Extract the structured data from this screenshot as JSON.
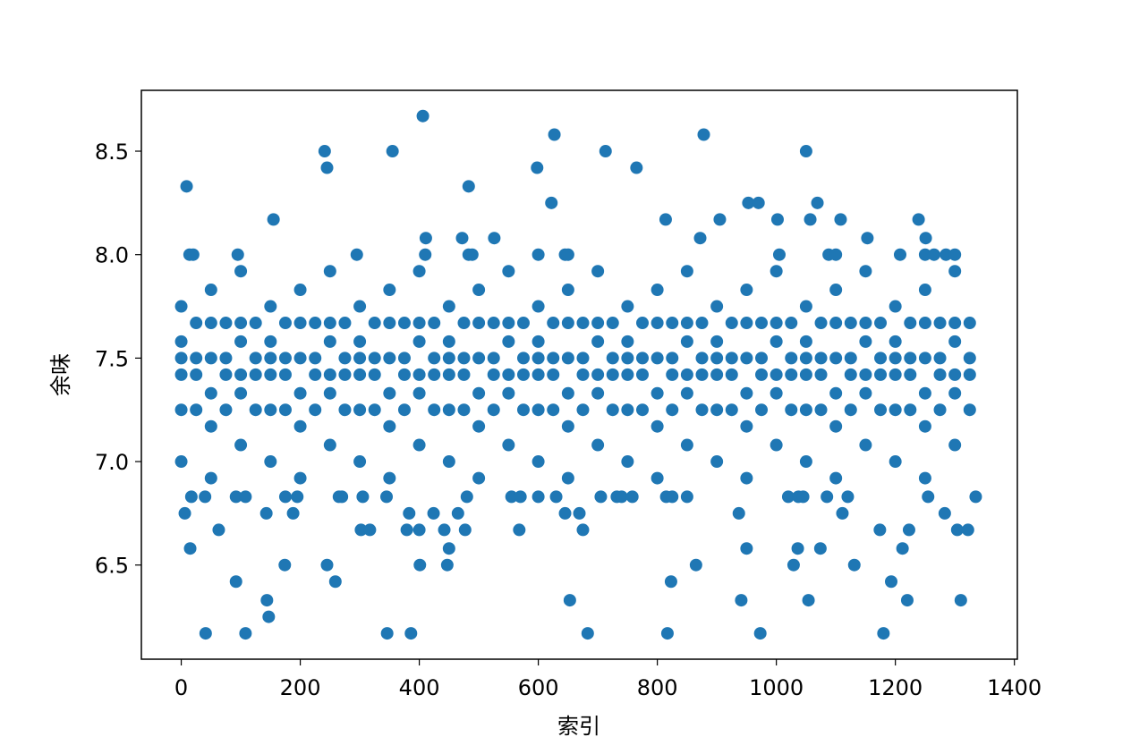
{
  "chart_data": {
    "type": "scatter",
    "x_label": "索引",
    "y_label": "余味",
    "color": "#1f77b4",
    "xlim": [
      -67,
      1405
    ],
    "ylim": [
      6.045,
      8.794
    ],
    "xticks": [
      0,
      200,
      400,
      600,
      800,
      1000,
      1200,
      1400
    ],
    "yticks": [
      6.5,
      {
        "value": 7.0,
        "label": "7.0"
      },
      7.5,
      {
        "value": 8.0,
        "label": "8.0"
      },
      8.5
    ],
    "x": [
      0,
      0,
      0,
      0,
      0,
      0,
      50,
      50,
      50,
      50,
      50,
      50,
      100,
      100,
      100,
      100,
      100,
      100,
      150,
      150,
      150,
      150,
      150,
      150,
      200,
      200,
      200,
      200,
      200,
      200,
      250,
      250,
      250,
      250,
      250,
      250,
      300,
      300,
      300,
      300,
      300,
      300,
      350,
      350,
      350,
      350,
      350,
      350,
      400,
      400,
      400,
      400,
      400,
      400,
      450,
      450,
      450,
      450,
      450,
      450,
      500,
      500,
      500,
      500,
      500,
      500,
      550,
      550,
      550,
      550,
      550,
      550,
      600,
      600,
      600,
      600,
      600,
      600,
      650,
      650,
      650,
      650,
      650,
      650,
      700,
      700,
      700,
      700,
      700,
      700,
      750,
      750,
      750,
      750,
      750,
      750,
      800,
      800,
      800,
      800,
      800,
      800,
      850,
      850,
      850,
      850,
      850,
      850,
      900,
      900,
      900,
      900,
      900,
      900,
      950,
      950,
      950,
      950,
      950,
      950,
      1000,
      1000,
      1000,
      1000,
      1000,
      1000,
      1050,
      1050,
      1050,
      1050,
      1050,
      1050,
      1100,
      1100,
      1100,
      1100,
      1100,
      1100,
      1150,
      1150,
      1150,
      1150,
      1150,
      1150,
      1200,
      1200,
      1200,
      1200,
      1200,
      1200,
      1250,
      1250,
      1250,
      1250,
      1250,
      1250,
      1300,
      1300,
      1300,
      1300,
      1300,
      1300,
      25,
      25,
      25,
      25,
      75,
      75,
      75,
      75,
      125,
      125,
      125,
      125,
      175,
      175,
      175,
      175,
      225,
      225,
      225,
      225,
      275,
      275,
      275,
      275,
      325,
      325,
      325,
      325,
      375,
      375,
      375,
      375,
      425,
      425,
      425,
      425,
      475,
      475,
      475,
      475,
      525,
      525,
      525,
      525,
      575,
      575,
      575,
      575,
      625,
      625,
      625,
      625,
      675,
      675,
      675,
      675,
      725,
      725,
      725,
      725,
      775,
      775,
      775,
      775,
      825,
      825,
      825,
      825,
      875,
      875,
      875,
      875,
      925,
      925,
      925,
      925,
      975,
      975,
      975,
      975,
      1025,
      1025,
      1025,
      1025,
      1075,
      1075,
      1075,
      1075,
      1125,
      1125,
      1125,
      1125,
      1175,
      1175,
      1175,
      1175,
      1225,
      1225,
      1225,
      1225,
      1275,
      1275,
      1275,
      1275,
      1325,
      1325,
      1325,
      1325,
      9,
      406,
      241,
      245,
      355,
      627,
      598,
      622,
      713,
      765,
      878,
      1050,
      483,
      155,
      953,
      970,
      1069,
      41,
      108,
      346,
      386,
      683,
      817,
      973,
      1180,
      144,
      147,
      653,
      941,
      1054,
      1220,
      1310,
      92,
      259,
      823,
      1193,
      15,
      450,
      950,
      1036,
      1074,
      1212,
      174,
      245,
      401,
      447,
      865,
      1029,
      1131,
      63,
      302,
      317,
      379,
      400,
      442,
      477,
      568,
      675,
      1174,
      1223,
      1304,
      1322,
      6,
      143,
      188,
      383,
      424,
      465,
      645,
      669,
      937,
      1111,
      1283,
      814,
      1239,
      1108,
      1002,
      905,
      1057,
      411,
      472,
      526,
      872,
      1153,
      1251,
      14,
      20,
      95,
      295,
      410,
      483,
      489,
      600,
      645,
      650,
      1005,
      1088,
      1100,
      1208,
      1250,
      1265,
      1285,
      1300,
      17,
      40,
      92,
      108,
      175,
      195,
      265,
      270,
      305,
      345,
      480,
      555,
      570,
      600,
      630,
      705,
      732,
      740,
      758,
      815,
      825,
      850,
      1020,
      1037,
      1045,
      1085,
      1120,
      1255,
      1335
    ],
    "values": [
      7.0,
      7.25,
      7.42,
      7.5,
      7.58,
      7.75,
      6.92,
      7.17,
      7.33,
      7.5,
      7.67,
      7.83,
      7.08,
      7.33,
      7.42,
      7.58,
      7.67,
      7.92,
      7.0,
      7.25,
      7.42,
      7.5,
      7.58,
      7.75,
      6.92,
      7.17,
      7.33,
      7.5,
      7.67,
      7.83,
      7.08,
      7.33,
      7.42,
      7.58,
      7.67,
      7.92,
      7.0,
      7.25,
      7.42,
      7.5,
      7.58,
      7.75,
      6.92,
      7.17,
      7.33,
      7.5,
      7.67,
      7.83,
      7.08,
      7.33,
      7.42,
      7.58,
      7.67,
      7.92,
      7.0,
      7.25,
      7.42,
      7.5,
      7.58,
      7.75,
      6.92,
      7.17,
      7.33,
      7.5,
      7.67,
      7.83,
      7.08,
      7.33,
      7.42,
      7.58,
      7.67,
      7.92,
      7.0,
      7.25,
      7.42,
      7.5,
      7.58,
      7.75,
      6.92,
      7.17,
      7.33,
      7.5,
      7.67,
      7.83,
      7.08,
      7.33,
      7.42,
      7.58,
      7.67,
      7.92,
      7.0,
      7.25,
      7.42,
      7.5,
      7.58,
      7.75,
      6.92,
      7.17,
      7.33,
      7.5,
      7.67,
      7.83,
      7.08,
      7.33,
      7.42,
      7.58,
      7.67,
      7.92,
      7.0,
      7.25,
      7.42,
      7.5,
      7.58,
      7.75,
      6.92,
      7.17,
      7.33,
      7.5,
      7.67,
      7.83,
      7.08,
      7.33,
      7.42,
      7.58,
      7.67,
      7.92,
      7.0,
      7.25,
      7.42,
      7.5,
      7.58,
      7.75,
      6.92,
      7.17,
      7.33,
      7.5,
      7.67,
      7.83,
      7.08,
      7.33,
      7.42,
      7.58,
      7.67,
      7.92,
      7.0,
      7.25,
      7.42,
      7.5,
      7.58,
      7.75,
      6.92,
      7.17,
      7.33,
      7.5,
      7.67,
      7.83,
      7.08,
      7.33,
      7.42,
      7.58,
      7.67,
      7.92,
      7.25,
      7.42,
      7.5,
      7.67,
      7.25,
      7.42,
      7.5,
      7.67,
      7.25,
      7.42,
      7.5,
      7.67,
      7.25,
      7.42,
      7.5,
      7.67,
      7.25,
      7.42,
      7.5,
      7.67,
      7.25,
      7.42,
      7.5,
      7.67,
      7.25,
      7.42,
      7.5,
      7.67,
      7.25,
      7.42,
      7.5,
      7.67,
      7.25,
      7.42,
      7.5,
      7.67,
      7.25,
      7.42,
      7.5,
      7.67,
      7.25,
      7.42,
      7.5,
      7.67,
      7.25,
      7.42,
      7.5,
      7.67,
      7.25,
      7.42,
      7.5,
      7.67,
      7.25,
      7.42,
      7.5,
      7.67,
      7.25,
      7.42,
      7.5,
      7.67,
      7.25,
      7.42,
      7.5,
      7.67,
      7.25,
      7.42,
      7.5,
      7.67,
      7.25,
      7.42,
      7.5,
      7.67,
      7.25,
      7.42,
      7.5,
      7.67,
      7.25,
      7.42,
      7.5,
      7.67,
      7.25,
      7.42,
      7.5,
      7.67,
      7.25,
      7.42,
      7.5,
      7.67,
      7.25,
      7.42,
      7.5,
      7.67,
      7.25,
      7.42,
      7.5,
      7.67,
      7.25,
      7.42,
      7.5,
      7.67,
      7.25,
      7.42,
      7.5,
      7.67,
      7.25,
      7.42,
      7.5,
      7.67,
      8.33,
      8.67,
      8.5,
      8.42,
      8.5,
      8.58,
      8.42,
      8.25,
      8.5,
      8.42,
      8.58,
      8.5,
      8.33,
      8.17,
      8.25,
      8.25,
      8.25,
      6.17,
      6.17,
      6.17,
      6.17,
      6.17,
      6.17,
      6.17,
      6.17,
      6.33,
      6.25,
      6.33,
      6.33,
      6.33,
      6.33,
      6.33,
      6.42,
      6.42,
      6.42,
      6.42,
      6.58,
      6.58,
      6.58,
      6.58,
      6.58,
      6.58,
      6.5,
      6.5,
      6.5,
      6.5,
      6.5,
      6.5,
      6.5,
      6.67,
      6.67,
      6.67,
      6.67,
      6.67,
      6.67,
      6.67,
      6.67,
      6.67,
      6.67,
      6.67,
      6.67,
      6.67,
      6.75,
      6.75,
      6.75,
      6.75,
      6.75,
      6.75,
      6.75,
      6.75,
      6.75,
      6.75,
      6.75,
      8.17,
      8.17,
      8.17,
      8.17,
      8.17,
      8.17,
      8.08,
      8.08,
      8.08,
      8.08,
      8.08,
      8.08,
      8.0,
      8.0,
      8.0,
      8.0,
      8.0,
      8.0,
      8.0,
      8.0,
      8.0,
      8.0,
      8.0,
      8.0,
      8.0,
      8.0,
      8.0,
      8.0,
      8.0,
      8.0,
      6.83,
      6.83,
      6.83,
      6.83,
      6.83,
      6.83,
      6.83,
      6.83,
      6.83,
      6.83,
      6.83,
      6.83,
      6.83,
      6.83,
      6.83,
      6.83,
      6.83,
      6.83,
      6.83,
      6.83,
      6.83,
      6.83,
      6.83,
      6.83,
      6.83,
      6.83,
      6.83,
      6.83,
      6.83
    ]
  }
}
